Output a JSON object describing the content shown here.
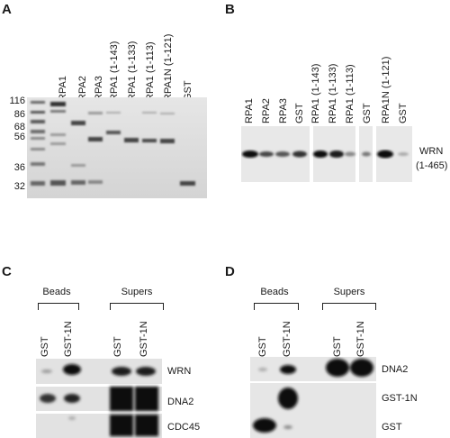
{
  "panels": {
    "A": {
      "label": "A",
      "lanes": [
        "RPA1",
        "RPA2",
        "RPA3",
        "RPA1 (1-143)",
        "RPA1 (1-133)",
        "RPA1 (1-113)",
        "RPA1N (1-121)",
        "GST"
      ],
      "markers": [
        "116",
        "86",
        "68",
        "56",
        "36",
        "32"
      ]
    },
    "B": {
      "label": "B",
      "lanes": [
        "RPA1",
        "RPA2",
        "RPA3",
        "GST",
        "RPA1 (1-143)",
        "RPA1 (1-133)",
        "RPA1 (1-113)",
        "GST",
        "RPA1N (1-121)",
        "GST"
      ],
      "row_label_line1": "WRN",
      "row_label_line2": "(1-465)"
    },
    "C": {
      "label": "C",
      "groups": [
        "Beads",
        "Supers"
      ],
      "lanes": [
        "GST",
        "GST-1N",
        "GST",
        "GST-1N"
      ],
      "rows": [
        "WRN",
        "DNA2",
        "CDC45"
      ]
    },
    "D": {
      "label": "D",
      "groups": [
        "Beads",
        "Supers"
      ],
      "lanes": [
        "GST",
        "GST-1N",
        "GST",
        "GST-1N"
      ],
      "rows": [
        "DNA2",
        "GST-1N",
        "GST"
      ]
    }
  }
}
